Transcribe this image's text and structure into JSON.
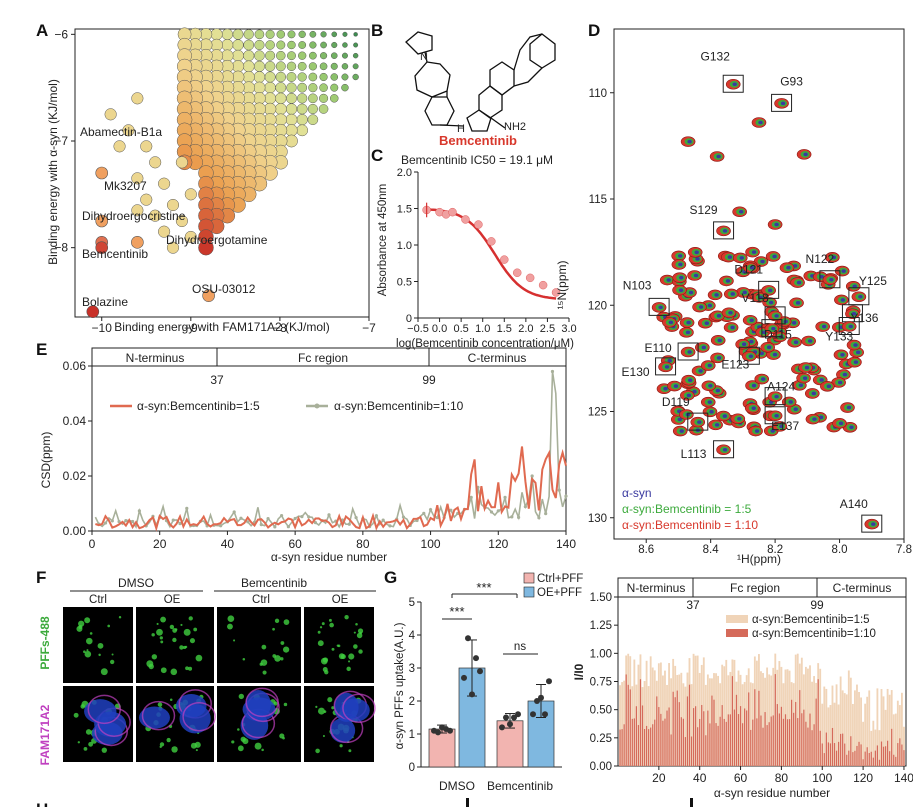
{
  "panels": {
    "A": "A",
    "B": "B",
    "C": "C",
    "D": "D",
    "E": "E",
    "F": "F",
    "G": "G",
    "H": "H"
  },
  "chart_data": [
    {
      "id": "A",
      "type": "scatter",
      "xlabel": "Binding energy with FAM171A2  (KJ/mol)",
      "ylabel": "Binding energy with α-syn (KJ/mol)",
      "xlim": [
        -10.3,
        -7.0
      ],
      "ylim": [
        -8.65,
        -5.95
      ],
      "xticks": [
        -10,
        -9,
        -8,
        -7
      ],
      "yticks": [
        -6,
        -7,
        -8
      ],
      "labeled_points": [
        {
          "name": "Abamectin-B1a",
          "x": -10.0,
          "y": -7.3
        },
        {
          "name": "Mk3207",
          "x": -10.0,
          "y": -7.75
        },
        {
          "name": "Dihydroergocristine",
          "x": -10.0,
          "y": -7.95
        },
        {
          "name": "Bemcentinib",
          "x": -10.0,
          "y": -8.0
        },
        {
          "name": "Dihydroergotamine",
          "x": -9.6,
          "y": -7.95
        },
        {
          "name": "OSU-03012",
          "x": -8.8,
          "y": -8.45
        },
        {
          "name": "Bolazine",
          "x": -10.1,
          "y": -8.6
        }
      ],
      "labels": [
        "Abamectin-B1a",
        "Mk3207",
        "Dihydroergocristine",
        "Bemcentinib",
        "Dihydroergotamine",
        "OSU-03012",
        "Bolazine"
      ]
    },
    {
      "id": "C",
      "type": "scatter",
      "title": "Bemcentinib IC50 = 19.1 μM",
      "xlabel": "log(Bemcentinib concentration/μM)",
      "ylabel": "Absorbance at 450nm",
      "xlim": [
        -0.5,
        3.0
      ],
      "ylim": [
        0,
        2.0
      ],
      "xticks": [
        -0.5,
        0.0,
        0.5,
        1.0,
        1.5,
        2.0,
        2.5,
        3.0
      ],
      "yticks": [
        0,
        0.5,
        1.0,
        1.5,
        2.0
      ],
      "points": [
        {
          "x": -0.3,
          "y": 1.48
        },
        {
          "x": 0.0,
          "y": 1.45
        },
        {
          "x": 0.15,
          "y": 1.42
        },
        {
          "x": 0.3,
          "y": 1.45
        },
        {
          "x": 0.6,
          "y": 1.35
        },
        {
          "x": 0.9,
          "y": 1.28
        },
        {
          "x": 1.2,
          "y": 1.05
        },
        {
          "x": 1.5,
          "y": 0.8
        },
        {
          "x": 1.8,
          "y": 0.62
        },
        {
          "x": 2.1,
          "y": 0.55
        },
        {
          "x": 2.4,
          "y": 0.45
        },
        {
          "x": 2.7,
          "y": 0.35
        }
      ],
      "fit": {
        "top": 1.5,
        "bottom": 0.25,
        "log_ic50": 1.28,
        "hill": 1.3
      }
    },
    {
      "id": "D",
      "type": "scatter",
      "xlabel": "¹H(ppm)",
      "ylabel": "¹⁵N(ppm)",
      "xlim": [
        8.7,
        7.8
      ],
      "ylim": [
        131,
        107
      ],
      "xticks": [
        8.6,
        8.4,
        8.2,
        8.0,
        7.8
      ],
      "yticks": [
        110,
        115,
        120,
        125,
        130
      ],
      "peaks": [
        {
          "label": "G132",
          "x": 8.33,
          "y": 109.6
        },
        {
          "label": "G93",
          "x": 8.18,
          "y": 110.5
        },
        {
          "label": "S129",
          "x": 8.36,
          "y": 116.5
        },
        {
          "label": "D121",
          "x": 8.22,
          "y": 119.3
        },
        {
          "label": "N122",
          "x": 8.03,
          "y": 118.8
        },
        {
          "label": "Y125",
          "x": 7.94,
          "y": 119.6
        },
        {
          "label": "N103",
          "x": 8.56,
          "y": 120.1
        },
        {
          "label": "V118",
          "x": 8.2,
          "y": 120.5
        },
        {
          "label": "Y136",
          "x": 7.96,
          "y": 120.4
        },
        {
          "label": "D115",
          "x": 8.21,
          "y": 121.1
        },
        {
          "label": "Y133",
          "x": 7.97,
          "y": 121.0
        },
        {
          "label": "E110",
          "x": 8.47,
          "y": 122.2
        },
        {
          "label": "E123",
          "x": 8.28,
          "y": 122.4
        },
        {
          "label": "E130",
          "x": 8.54,
          "y": 122.9
        },
        {
          "label": "A124",
          "x": 8.2,
          "y": 124.3
        },
        {
          "label": "D119",
          "x": 8.44,
          "y": 125.5
        },
        {
          "label": "E137",
          "x": 8.2,
          "y": 125.2
        },
        {
          "label": "L113",
          "x": 8.36,
          "y": 126.8
        },
        {
          "label": "A140",
          "x": 7.9,
          "y": 130.3
        }
      ],
      "legend": [
        "α-syn",
        "α-syn:Bemcentinib = 1:5",
        "α-syn:Bemcentinib = 1:10"
      ],
      "colors": [
        "#3a3aa0",
        "#3caa3c",
        "#d8382c"
      ]
    },
    {
      "id": "E",
      "type": "line",
      "xlabel": "α-syn residue number",
      "ylabel": "CSD(ppm)",
      "xlim": [
        0,
        140
      ],
      "ylim": [
        0,
        0.06
      ],
      "xticks": [
        0,
        20,
        40,
        60,
        80,
        100,
        120,
        140
      ],
      "yticks": [
        0.0,
        0.02,
        0.04,
        0.06
      ],
      "regions": [
        "N-terminus",
        "Fc region",
        "C-terminus"
      ],
      "region_marks": [
        "37",
        "99"
      ],
      "series": [
        {
          "name": "α-syn:Bemcentinib=1:5",
          "color": "#e06a50"
        },
        {
          "name": "α-syn:Bemcentinib=1:10",
          "color": "#a8b09a"
        }
      ],
      "highlight_values": [
        {
          "residue": 136,
          "value": 0.058
        },
        {
          "residue": 137,
          "value": 0.05
        },
        {
          "residue": 130,
          "value": 0.02
        }
      ]
    },
    {
      "id": "G",
      "type": "bar",
      "ylabel": "α-syn PFFs uptake(A.U.)",
      "ylim": [
        0,
        5
      ],
      "yticks": [
        0,
        1,
        2,
        3,
        4,
        5
      ],
      "categories": [
        "DMSO",
        "Bemcentinib"
      ],
      "series": [
        {
          "name": "Ctrl+PFF",
          "color": "#f2b4b0",
          "values": [
            1.15,
            1.4
          ]
        },
        {
          "name": "OE+PFF",
          "color": "#7fb8e0",
          "values": [
            3.0,
            2.0
          ]
        }
      ],
      "errors": [
        [
          0.12,
          0.22
        ],
        [
          0.85,
          0.5
        ]
      ],
      "points": [
        [
          [
            1.1,
            1.05,
            1.2,
            1.15,
            1.1
          ],
          [
            1.2,
            1.5,
            1.3,
            1.5,
            1.6
          ]
        ],
        [
          [
            2.7,
            3.9,
            2.2,
            3.3,
            2.9
          ],
          [
            1.6,
            2.0,
            2.1,
            1.6,
            2.6
          ]
        ]
      ],
      "significance": [
        "***",
        "ns",
        "***"
      ]
    },
    {
      "id": "H",
      "type": "bar",
      "xlabel": "α-syn residue number",
      "ylabel": "I/I0",
      "xlim": [
        0,
        141
      ],
      "ylim": [
        0,
        1.5
      ],
      "xticks": [
        20,
        40,
        60,
        80,
        100,
        120,
        140
      ],
      "yticks": [
        0.0,
        0.25,
        0.5,
        0.75,
        1.0,
        1.25,
        1.5
      ],
      "regions": [
        "N-terminus",
        "Fc region",
        "C-terminus"
      ],
      "region_marks": [
        "37",
        "99"
      ],
      "series": [
        {
          "name": "α-syn:Bemcentinib=1:5",
          "color": "#f0d4b8"
        },
        {
          "name": "α-syn:Bemcentinib=1:10",
          "color": "#d56a5a"
        }
      ]
    }
  ],
  "structure": {
    "name": "Bemcentinib",
    "n_label": "N",
    "nh_label": "H",
    "nh2_label": "NH2"
  },
  "micrograph": {
    "conditions": [
      "DMSO",
      "Bemcentinib"
    ],
    "groups": [
      "Ctrl",
      "OE",
      "Ctrl",
      "OE"
    ],
    "row_labels": [
      "PFFs-488",
      "FAM171A2"
    ]
  }
}
